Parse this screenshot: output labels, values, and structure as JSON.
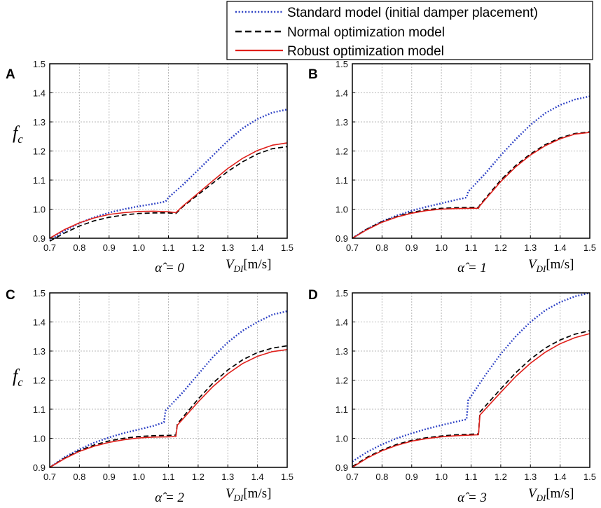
{
  "legend": {
    "placement": "top-right",
    "entries": [
      {
        "label": "Standard model (initial damper placement)",
        "color": "#2b3fc4",
        "style": "dotted"
      },
      {
        "label": "Normal optimization model",
        "color": "#000000",
        "style": "dashed"
      },
      {
        "label": "Robust optimization model",
        "color": "#e0201b",
        "style": "solid"
      }
    ]
  },
  "ylabel_main": "f",
  "ylabel_sub": "c",
  "xlabel_main": "V",
  "xlabel_sub": "DI",
  "xlabel_unit": "[m/s]",
  "chart_data": [
    {
      "type": "line",
      "panel": "A",
      "caption": "α̂ = 0",
      "xlim": [
        0.7,
        1.5
      ],
      "ylim": [
        0.9,
        1.5
      ],
      "xticks": [
        0.7,
        0.8,
        0.9,
        1.0,
        1.1,
        1.2,
        1.3,
        1.4,
        1.5
      ],
      "yticks": [
        0.9,
        1.0,
        1.1,
        1.2,
        1.3,
        1.4,
        1.5
      ],
      "series": [
        {
          "name": "Standard model (initial damper placement)",
          "x": [
            0.7,
            0.75,
            0.8,
            0.85,
            0.9,
            0.95,
            1.0,
            1.05,
            1.09,
            1.1,
            1.15,
            1.2,
            1.25,
            1.3,
            1.35,
            1.4,
            1.45,
            1.5
          ],
          "y": [
            0.893,
            0.925,
            0.952,
            0.972,
            0.988,
            1.0,
            1.01,
            1.018,
            1.026,
            1.04,
            1.085,
            1.135,
            1.185,
            1.235,
            1.278,
            1.31,
            1.332,
            1.343
          ]
        },
        {
          "name": "Normal optimization model",
          "x": [
            0.7,
            0.75,
            0.8,
            0.85,
            0.9,
            0.95,
            1.0,
            1.05,
            1.1,
            1.125,
            1.15,
            1.2,
            1.25,
            1.3,
            1.35,
            1.4,
            1.45,
            1.5
          ],
          "y": [
            0.89,
            0.918,
            0.942,
            0.96,
            0.972,
            0.98,
            0.985,
            0.987,
            0.987,
            0.985,
            1.01,
            1.05,
            1.09,
            1.13,
            1.163,
            1.19,
            1.208,
            1.215
          ]
        },
        {
          "name": "Robust optimization model",
          "x": [
            0.7,
            0.75,
            0.8,
            0.85,
            0.9,
            0.95,
            1.0,
            1.05,
            1.1,
            1.125,
            1.15,
            1.2,
            1.25,
            1.3,
            1.35,
            1.4,
            1.45,
            1.5
          ],
          "y": [
            0.9,
            0.93,
            0.953,
            0.97,
            0.982,
            0.988,
            0.992,
            0.993,
            0.991,
            0.988,
            1.012,
            1.055,
            1.098,
            1.14,
            1.175,
            1.202,
            1.22,
            1.228
          ]
        }
      ]
    },
    {
      "type": "line",
      "panel": "B",
      "caption": "α̂ = 1",
      "xlim": [
        0.7,
        1.5
      ],
      "ylim": [
        0.9,
        1.5
      ],
      "xticks": [
        0.7,
        0.8,
        0.9,
        1.0,
        1.1,
        1.2,
        1.3,
        1.4,
        1.5
      ],
      "yticks": [
        0.9,
        1.0,
        1.1,
        1.2,
        1.3,
        1.4,
        1.5
      ],
      "series": [
        {
          "name": "Standard model (initial damper placement)",
          "x": [
            0.7,
            0.75,
            0.8,
            0.85,
            0.9,
            0.95,
            1.0,
            1.05,
            1.085,
            1.09,
            1.15,
            1.2,
            1.25,
            1.3,
            1.35,
            1.4,
            1.45,
            1.5
          ],
          "y": [
            0.9,
            0.932,
            0.958,
            0.978,
            0.995,
            1.008,
            1.02,
            1.032,
            1.04,
            1.06,
            1.125,
            1.185,
            1.24,
            1.29,
            1.33,
            1.358,
            1.377,
            1.388
          ]
        },
        {
          "name": "Normal optimization model",
          "x": [
            0.7,
            0.75,
            0.8,
            0.85,
            0.9,
            0.95,
            1.0,
            1.05,
            1.1,
            1.125,
            1.13,
            1.2,
            1.25,
            1.3,
            1.35,
            1.4,
            1.45,
            1.5
          ],
          "y": [
            0.9,
            0.932,
            0.957,
            0.975,
            0.989,
            0.998,
            1.003,
            1.005,
            1.006,
            1.006,
            1.015,
            1.1,
            1.15,
            1.19,
            1.222,
            1.245,
            1.26,
            1.266
          ]
        },
        {
          "name": "Robust optimization model",
          "x": [
            0.7,
            0.75,
            0.8,
            0.85,
            0.9,
            0.95,
            1.0,
            1.05,
            1.1,
            1.125,
            1.13,
            1.2,
            1.25,
            1.3,
            1.35,
            1.4,
            1.45,
            1.5
          ],
          "y": [
            0.9,
            0.93,
            0.955,
            0.973,
            0.986,
            0.995,
            1.0,
            1.002,
            1.003,
            1.003,
            1.012,
            1.095,
            1.145,
            1.186,
            1.218,
            1.242,
            1.258,
            1.264
          ]
        }
      ]
    },
    {
      "type": "line",
      "panel": "C",
      "caption": "α̂ = 2",
      "xlim": [
        0.7,
        1.5
      ],
      "ylim": [
        0.9,
        1.5
      ],
      "xticks": [
        0.7,
        0.8,
        0.9,
        1.0,
        1.1,
        1.2,
        1.3,
        1.4,
        1.5
      ],
      "yticks": [
        0.9,
        1.0,
        1.1,
        1.2,
        1.3,
        1.4,
        1.5
      ],
      "series": [
        {
          "name": "Standard model (initial damper placement)",
          "x": [
            0.7,
            0.75,
            0.8,
            0.85,
            0.9,
            0.95,
            1.0,
            1.05,
            1.085,
            1.09,
            1.15,
            1.2,
            1.25,
            1.3,
            1.35,
            1.4,
            1.45,
            1.5
          ],
          "y": [
            0.9,
            0.935,
            0.962,
            0.985,
            1.003,
            1.018,
            1.03,
            1.043,
            1.055,
            1.095,
            1.16,
            1.22,
            1.28,
            1.33,
            1.37,
            1.4,
            1.425,
            1.437
          ]
        },
        {
          "name": "Normal optimization model",
          "x": [
            0.7,
            0.75,
            0.8,
            0.85,
            0.9,
            0.95,
            1.0,
            1.05,
            1.1,
            1.125,
            1.13,
            1.2,
            1.25,
            1.3,
            1.35,
            1.4,
            1.45,
            1.5
          ],
          "y": [
            0.9,
            0.932,
            0.958,
            0.977,
            0.991,
            1.0,
            1.006,
            1.009,
            1.01,
            1.011,
            1.05,
            1.135,
            1.19,
            1.235,
            1.27,
            1.295,
            1.31,
            1.318
          ]
        },
        {
          "name": "Robust optimization model",
          "x": [
            0.7,
            0.75,
            0.8,
            0.85,
            0.9,
            0.95,
            1.0,
            1.05,
            1.1,
            1.125,
            1.13,
            1.2,
            1.25,
            1.3,
            1.35,
            1.4,
            1.45,
            1.5
          ],
          "y": [
            0.9,
            0.93,
            0.955,
            0.973,
            0.986,
            0.995,
            1.001,
            1.004,
            1.005,
            1.006,
            1.045,
            1.125,
            1.178,
            1.222,
            1.257,
            1.282,
            1.298,
            1.305
          ]
        }
      ]
    },
    {
      "type": "line",
      "panel": "D",
      "caption": "α̂ = 3",
      "xlim": [
        0.7,
        1.5
      ],
      "ylim": [
        0.9,
        1.5
      ],
      "xticks": [
        0.7,
        0.8,
        0.9,
        1.0,
        1.1,
        1.2,
        1.3,
        1.4,
        1.5
      ],
      "yticks": [
        0.9,
        1.0,
        1.1,
        1.2,
        1.3,
        1.4,
        1.5
      ],
      "series": [
        {
          "name": "Standard model (initial damper placement)",
          "x": [
            0.7,
            0.75,
            0.8,
            0.85,
            0.9,
            0.95,
            1.0,
            1.05,
            1.085,
            1.09,
            1.15,
            1.2,
            1.25,
            1.3,
            1.35,
            1.4,
            1.45,
            1.5
          ],
          "y": [
            0.92,
            0.953,
            0.979,
            1.0,
            1.017,
            1.032,
            1.045,
            1.057,
            1.065,
            1.13,
            1.22,
            1.29,
            1.35,
            1.4,
            1.44,
            1.468,
            1.488,
            1.5
          ]
        },
        {
          "name": "Normal optimization model",
          "x": [
            0.7,
            0.75,
            0.8,
            0.85,
            0.9,
            0.95,
            1.0,
            1.05,
            1.1,
            1.125,
            1.13,
            1.2,
            1.25,
            1.3,
            1.35,
            1.4,
            1.45,
            1.5
          ],
          "y": [
            0.903,
            0.935,
            0.96,
            0.979,
            0.993,
            1.002,
            1.008,
            1.012,
            1.014,
            1.015,
            1.09,
            1.17,
            1.225,
            1.272,
            1.31,
            1.338,
            1.358,
            1.37
          ]
        },
        {
          "name": "Robust optimization model",
          "x": [
            0.7,
            0.75,
            0.8,
            0.85,
            0.9,
            0.95,
            1.0,
            1.05,
            1.1,
            1.125,
            1.13,
            1.2,
            1.25,
            1.3,
            1.35,
            1.4,
            1.45,
            1.5
          ],
          "y": [
            0.9,
            0.932,
            0.957,
            0.976,
            0.99,
            0.999,
            1.005,
            1.009,
            1.011,
            1.012,
            1.08,
            1.158,
            1.212,
            1.258,
            1.296,
            1.325,
            1.346,
            1.36
          ]
        }
      ]
    }
  ]
}
